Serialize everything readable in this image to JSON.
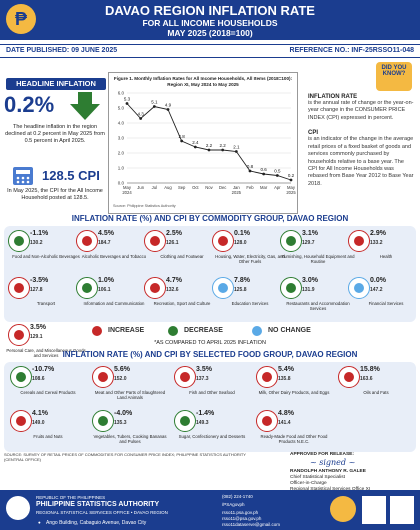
{
  "header": {
    "title": "DAVAO REGION INFLATION RATE",
    "subtitle": "FOR ALL INCOME HOUSEHOLDS",
    "period": "MAY 2025 (2018=100)"
  },
  "meta": {
    "date_published": "DATE PUBLISHED: 09 JUNE 2025",
    "reference": "REFERENCE NO.: INF-25RSSO11-048"
  },
  "headline": {
    "label": "HEADLINE INFLATION",
    "value": "0.2%",
    "description": "The headline inflation in the region declined at 0.2 percent in May 2025 from 0.5 percent in April 2025.",
    "cpi_value": "128.5 CPI",
    "cpi_description": "In May 2025, the CPI for the All Income Household posted at 128.5."
  },
  "chart_data": {
    "type": "line",
    "title": "Figure 1. Monthly Inflation Rates for All Income Households, All Items (2018=100): Region XI, May 2024 to May 2025",
    "x": [
      "May 2024",
      "Jun",
      "Jul",
      "Aug",
      "Sep",
      "Oct",
      "Nov",
      "Dec",
      "Jan 2025",
      "Feb",
      "Mar",
      "Apr",
      "May 2025"
    ],
    "x_tick_labels": [
      "May\n2024",
      "Jun",
      "Jul",
      "Aug",
      "Sep",
      "Oct",
      "Nov",
      "Dec",
      "Jan\n2025",
      "Feb",
      "Mar",
      "Apr",
      "May\n2025"
    ],
    "values": [
      5.3,
      4.3,
      5.1,
      4.9,
      2.8,
      2.4,
      2.2,
      2.2,
      2.1,
      0.8,
      0.6,
      0.5,
      0.2
    ],
    "ylim": [
      0,
      6
    ],
    "yticks": [
      "0.0",
      "1.0",
      "2.0",
      "3.0",
      "4.0",
      "5.0",
      "6.0"
    ],
    "source": "Source: Philippine Statistics Authority"
  },
  "did_you_know": {
    "label": "DID YOU KNOW?",
    "inflation_title": "INFLATION RATE",
    "inflation_def": "is the annual rate of change or the year-on-year change in the CONSUMER PRICE INDEX (CPI) expressed in percent.",
    "cpi_title": "CPI",
    "cpi_def": "is an indicator of the change in the average retail prices of a fixed basket of goods and services commonly purchased by households relative to a base year. The CPI for All Income Households was rebased from Base Year 2012 to Base Year 2018."
  },
  "commodity": {
    "title": "INFLATION RATE (%) AND CPI BY COMMODITY GROUP, DAVAO REGION",
    "items": [
      {
        "pct": "-1.1%",
        "cpi": "130.2",
        "label": "Food and Non-Alcoholic Beverages",
        "status": "decrease"
      },
      {
        "pct": "4.5%",
        "cpi": "184.7",
        "label": "Alcoholic Beverages and Tobacco",
        "status": "increase"
      },
      {
        "pct": "2.5%",
        "cpi": "126.1",
        "label": "Clothing and Footwear",
        "status": "increase"
      },
      {
        "pct": "0.1%",
        "cpi": "128.0",
        "label": "Housing, Water, Electricity, Gas, and Other Fuels",
        "status": "increase"
      },
      {
        "pct": "3.1%",
        "cpi": "129.7",
        "label": "Furnishing, Household Equipment and Routine",
        "status": "decrease"
      },
      {
        "pct": "2.9%",
        "cpi": "133.2",
        "label": "Health",
        "status": "increase"
      },
      {
        "pct": "-3.5%",
        "cpi": "127.8",
        "label": "Transport",
        "status": "increase"
      },
      {
        "pct": "1.0%",
        "cpi": "106.1",
        "label": "Information and Communication",
        "status": "decrease"
      },
      {
        "pct": "4.7%",
        "cpi": "132.6",
        "label": "Recreation, Sport and Culture",
        "status": "increase"
      },
      {
        "pct": "7.8%",
        "cpi": "125.8",
        "label": "Education Services",
        "status": "nochange"
      },
      {
        "pct": "3.0%",
        "cpi": "131.9",
        "label": "Restaurants and Accommodation Services",
        "status": "decrease"
      },
      {
        "pct": "0.0%",
        "cpi": "147.2",
        "label": "Financial Services",
        "status": "nochange"
      },
      {
        "pct": "3.5%",
        "cpi": "129.1",
        "label": "Personal Care, and Miscellaneous Goods and Services",
        "status": "increase"
      }
    ]
  },
  "legend": {
    "increase": "INCREASE",
    "decrease": "DECREASE",
    "nochange": "NO CHANGE",
    "note": "*AS COMPARED TO APRIL 2025 INFLATION",
    "colors": {
      "increase": "#c62828",
      "decrease": "#2e7d32",
      "nochange": "#5aa9e6"
    }
  },
  "food": {
    "title": "INFLATION RATE (%) AND CPI BY SELECTED FOOD GROUP, DAVAO REGION",
    "items": [
      {
        "pct": "-10.7%",
        "cpi": "108.6",
        "label": "Cereals and Cereal Products",
        "status": "decrease"
      },
      {
        "pct": "5.6%",
        "cpi": "152.0",
        "label": "Meat and Other Parts of Slaughtered Land Animals",
        "status": "increase"
      },
      {
        "pct": "3.5%",
        "cpi": "137.3",
        "label": "Fish and Other Seafood",
        "status": "increase"
      },
      {
        "pct": "5.4%",
        "cpi": "135.8",
        "label": "Milk, Other Dairy Products, and Eggs",
        "status": "increase"
      },
      {
        "pct": "15.8%",
        "cpi": "163.6",
        "label": "Oils and Fats",
        "status": "increase"
      },
      {
        "pct": "4.1%",
        "cpi": "149.0",
        "label": "Fruits and Nuts",
        "status": "increase"
      },
      {
        "pct": "-4.0%",
        "cpi": "135.3",
        "label": "Vegetables, Tubers, Cooking Bananas and Pulses",
        "status": "decrease"
      },
      {
        "pct": "-1.4%",
        "cpi": "149.3",
        "label": "Sugar, Confectionery and Desserts",
        "status": "decrease"
      },
      {
        "pct": "4.8%",
        "cpi": "141.4",
        "label": "Ready-Made Food and Other Food Products N.E.C.",
        "status": "increase"
      }
    ]
  },
  "source_note": "SOURCE: SURVEY OF RETAIL PRICES OF COMMODITIES FOR CONSUMER PRICE INDEX; PHILIPPINE STATISTICS AUTHORITY (CENTRAL OFFICE)",
  "approval": {
    "label": "APPROVED FOR RELEASE:",
    "name": "RANDOLPH ANTHONY R. GALEE",
    "position1": "Chief Statistical Specialist",
    "position2": "Officer-in-Charge",
    "office": "Regional Statistical Services Office XI"
  },
  "footer": {
    "republic": "REPUBLIC OF THE PHILIPPINES",
    "agency": "PHILIPPINE STATISTICS AUTHORITY",
    "office": "REGIONAL STATISTICAL SERVICES OFFICE • DAVAO REGION",
    "address": "Ango Building, Cabaguio Avenue, Davao City",
    "phone": "(082) 224-1740",
    "social": "/PSAgovph",
    "web1": "rsso11.psa.gov.ph",
    "web2": "rsso11@psa.gov.ph",
    "web3": "rsso11dataserve@gmail.com"
  }
}
